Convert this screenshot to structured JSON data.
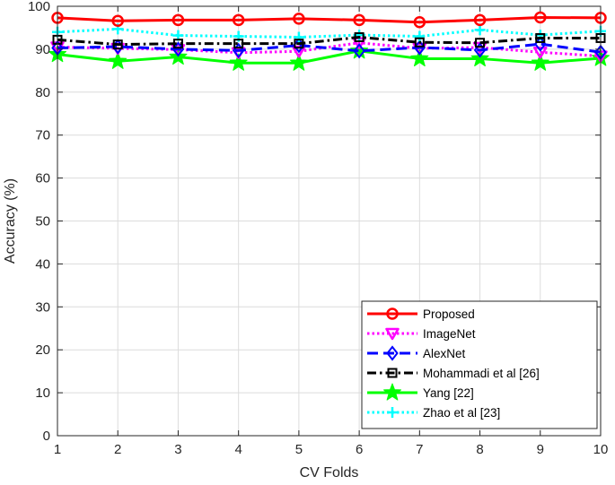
{
  "chart_data": {
    "type": "line",
    "title": "",
    "xlabel": "CV Folds",
    "ylabel": "Accuracy (%)",
    "x": [
      1,
      2,
      3,
      4,
      5,
      6,
      7,
      8,
      9,
      10
    ],
    "xticks": [
      "1",
      "2",
      "3",
      "4",
      "5",
      "6",
      "7",
      "8",
      "9",
      "10"
    ],
    "xlim": [
      1,
      10
    ],
    "ylim": [
      0,
      100
    ],
    "yticks": [
      "0",
      "10",
      "20",
      "30",
      "40",
      "50",
      "60",
      "70",
      "80",
      "90",
      "100"
    ],
    "grid": true,
    "legend_position": "bottom-right",
    "series": [
      {
        "name": "Proposed",
        "color": "#ff0000",
        "marker": "circle",
        "dash": "solid",
        "values": [
          97.3,
          96.6,
          96.8,
          96.8,
          97.1,
          96.8,
          96.3,
          96.8,
          97.4,
          97.3
        ]
      },
      {
        "name": "ImageNet",
        "color": "#ff00ff",
        "marker": "triangle-down",
        "dash": "dotted",
        "values": [
          90.5,
          90.2,
          89.9,
          89.2,
          89.5,
          91.5,
          90.2,
          90.4,
          89.3,
          88.4
        ]
      },
      {
        "name": "AlexNet",
        "color": "#0000ff",
        "marker": "diamond",
        "dash": "dashed",
        "values": [
          90.3,
          90.6,
          90.0,
          89.7,
          90.9,
          89.6,
          90.4,
          89.8,
          91.2,
          89.3
        ]
      },
      {
        "name": "Mohammadi et al [26]",
        "color": "#000000",
        "marker": "square",
        "dash": "dashdot",
        "values": [
          92.2,
          91.1,
          91.3,
          91.3,
          91.3,
          92.8,
          91.6,
          91.5,
          92.6,
          92.6
        ]
      },
      {
        "name": "Yang [22]",
        "color": "#00ff00",
        "marker": "star",
        "dash": "solid",
        "values": [
          88.8,
          87.2,
          88.2,
          86.8,
          86.8,
          89.6,
          87.8,
          87.8,
          86.8,
          87.9
        ]
      },
      {
        "name": "Zhao et al [23]",
        "color": "#00ffff",
        "marker": "plus",
        "dash": "dotted",
        "values": [
          94.0,
          94.7,
          93.2,
          93.0,
          92.8,
          93.3,
          93.0,
          94.5,
          93.3,
          94.2
        ]
      }
    ]
  }
}
